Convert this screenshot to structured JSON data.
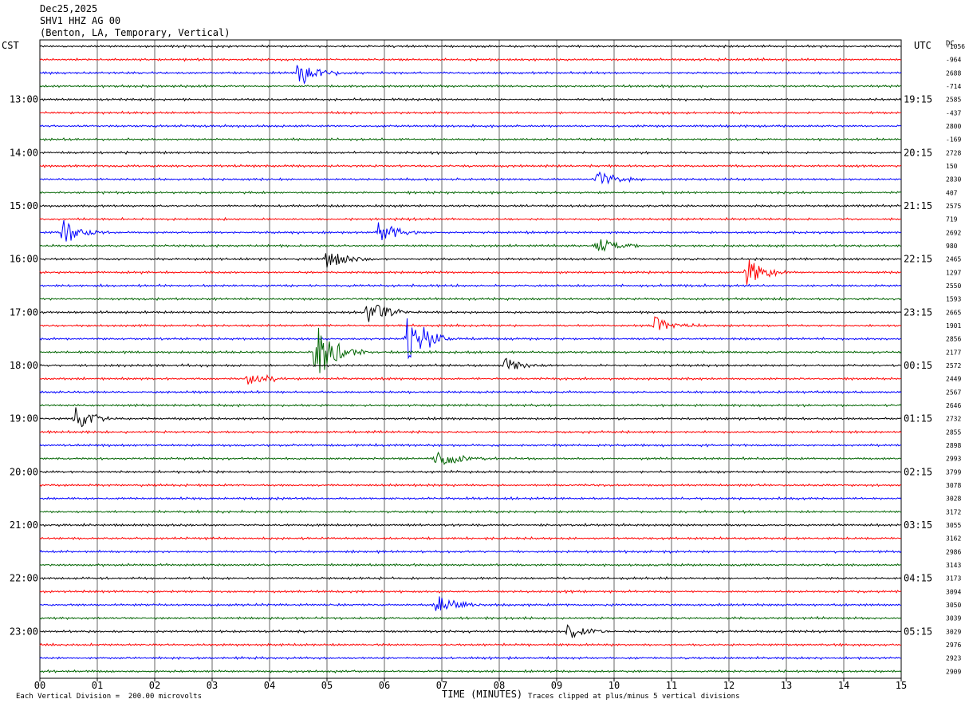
{
  "header": {
    "date": "Dec25,2025",
    "station": "SHV1 HHZ AG 00",
    "location": "(Benton, LA, Temporary, Vertical)"
  },
  "left_tz": "CST",
  "right_tz": "UTC",
  "dc_label": "DC",
  "footer": {
    "vertical_division": "Each Vertical Division =  200.00 microvolts",
    "xlabel": "TIME (MINUTES)",
    "clip_note": "Traces clipped at plus/minus 5 vertical divisions"
  },
  "colors": {
    "trace_cycle": [
      "#000000",
      "#ff0000",
      "#0000ff",
      "#006400"
    ],
    "grid": "#000000"
  },
  "chart_data": {
    "type": "line",
    "title": "SHV1 HHZ AG 00",
    "xlabel": "TIME (MINUTES)",
    "x_ticks": [
      "00",
      "01",
      "02",
      "03",
      "04",
      "05",
      "06",
      "07",
      "08",
      "09",
      "10",
      "11",
      "12",
      "13",
      "14",
      "15"
    ],
    "xlim": [
      0,
      15
    ],
    "trace_count": 48,
    "trace_minutes": 15,
    "left_hour_labels": [
      "13:00",
      "14:00",
      "15:00",
      "16:00",
      "17:00",
      "18:00",
      "19:00",
      "20:00",
      "21:00",
      "22:00",
      "23:00"
    ],
    "right_hour_labels": [
      "19:15",
      "20:15",
      "21:15",
      "22:15",
      "23:15",
      "00:15",
      "01:15",
      "02:15",
      "03:15",
      "04:15",
      "05:15"
    ],
    "dc_offsets": [
      "-1056",
      "-964",
      "2688",
      "-714",
      "2585",
      "-437",
      "2800",
      "-169",
      "2728",
      "150",
      "2830",
      "407",
      "2575",
      "719",
      "2692",
      "980",
      "2465",
      "1297",
      "2550",
      "1593",
      "2665",
      "1901",
      "2856",
      "2177",
      "2572",
      "2449",
      "2567",
      "2646",
      "2732",
      "2855",
      "2898",
      "2993",
      "3799",
      "3078",
      "3028",
      "3172",
      "3055",
      "3162",
      "2986",
      "3143",
      "3173",
      "3094",
      "3050",
      "3039",
      "3029",
      "2976",
      "2923",
      "2909"
    ],
    "events": [
      {
        "trace": 2,
        "minute": 4.5,
        "amplitude": 2.0
      },
      {
        "trace": 10,
        "minute": 9.7,
        "amplitude": 1.5
      },
      {
        "trace": 14,
        "minute": 0.4,
        "amplitude": 1.8
      },
      {
        "trace": 14,
        "minute": 5.9,
        "amplitude": 1.6
      },
      {
        "trace": 15,
        "minute": 9.7,
        "amplitude": 1.3
      },
      {
        "trace": 16,
        "minute": 5.0,
        "amplitude": 1.6
      },
      {
        "trace": 17,
        "minute": 12.3,
        "amplitude": 2.2
      },
      {
        "trace": 20,
        "minute": 5.7,
        "amplitude": 2.0
      },
      {
        "trace": 21,
        "minute": 10.7,
        "amplitude": 1.3
      },
      {
        "trace": 22,
        "minute": 6.4,
        "amplitude": 4.5
      },
      {
        "trace": 23,
        "minute": 4.8,
        "amplitude": 4.5
      },
      {
        "trace": 24,
        "minute": 8.1,
        "amplitude": 1.2
      },
      {
        "trace": 25,
        "minute": 3.6,
        "amplitude": 1.5
      },
      {
        "trace": 28,
        "minute": 0.6,
        "amplitude": 1.8
      },
      {
        "trace": 31,
        "minute": 6.9,
        "amplitude": 2.0
      },
      {
        "trace": 42,
        "minute": 6.9,
        "amplitude": 1.5
      },
      {
        "trace": 44,
        "minute": 9.2,
        "amplitude": 1.1
      }
    ]
  }
}
